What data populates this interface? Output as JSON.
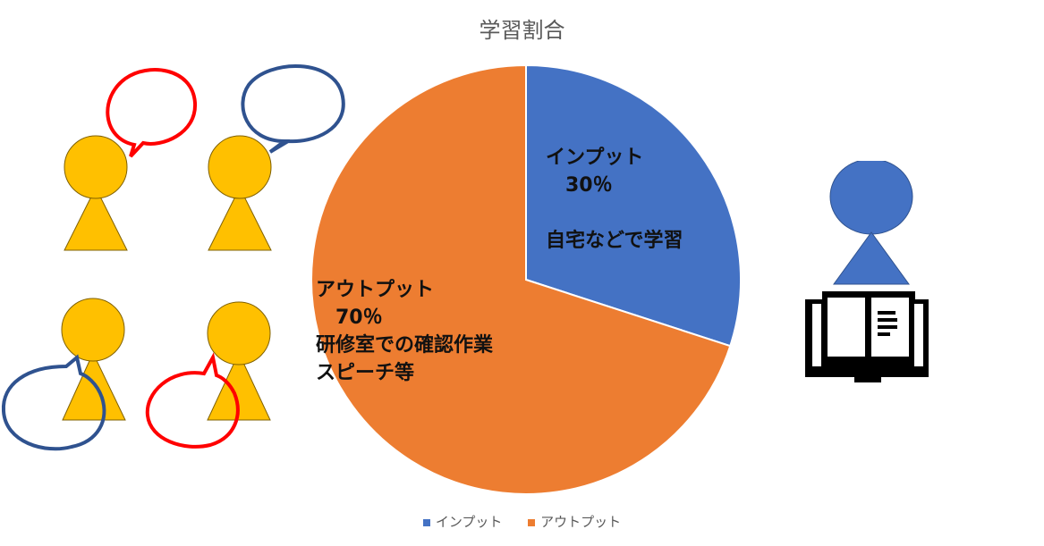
{
  "chart_data": {
    "type": "pie",
    "title": "学習割合",
    "categories": [
      "インプット",
      "アウトプット"
    ],
    "values": [
      30,
      70
    ],
    "colors": [
      "#4472C4",
      "#ED7D31"
    ],
    "data_labels": [
      {
        "lines": [
          "インプット",
          "　30％",
          "",
          "自宅などで学習"
        ]
      },
      {
        "lines": [
          "アウトプット",
          "　70％",
          "研修室での確認作業",
          "スピーチ等"
        ]
      }
    ],
    "legend": {
      "position": "bottom",
      "entries": [
        "インプット",
        "アウトプット"
      ]
    }
  },
  "illustrations": {
    "left_group": {
      "description_icon": "people-talking-icon",
      "person_color": "#FFC000",
      "bubble_colors": [
        "#FF0000",
        "#2F528F"
      ]
    },
    "right_reader": {
      "description_icon": "person-reading-book-icon",
      "person_color": "#4472C4",
      "book_color": "#000000"
    }
  }
}
